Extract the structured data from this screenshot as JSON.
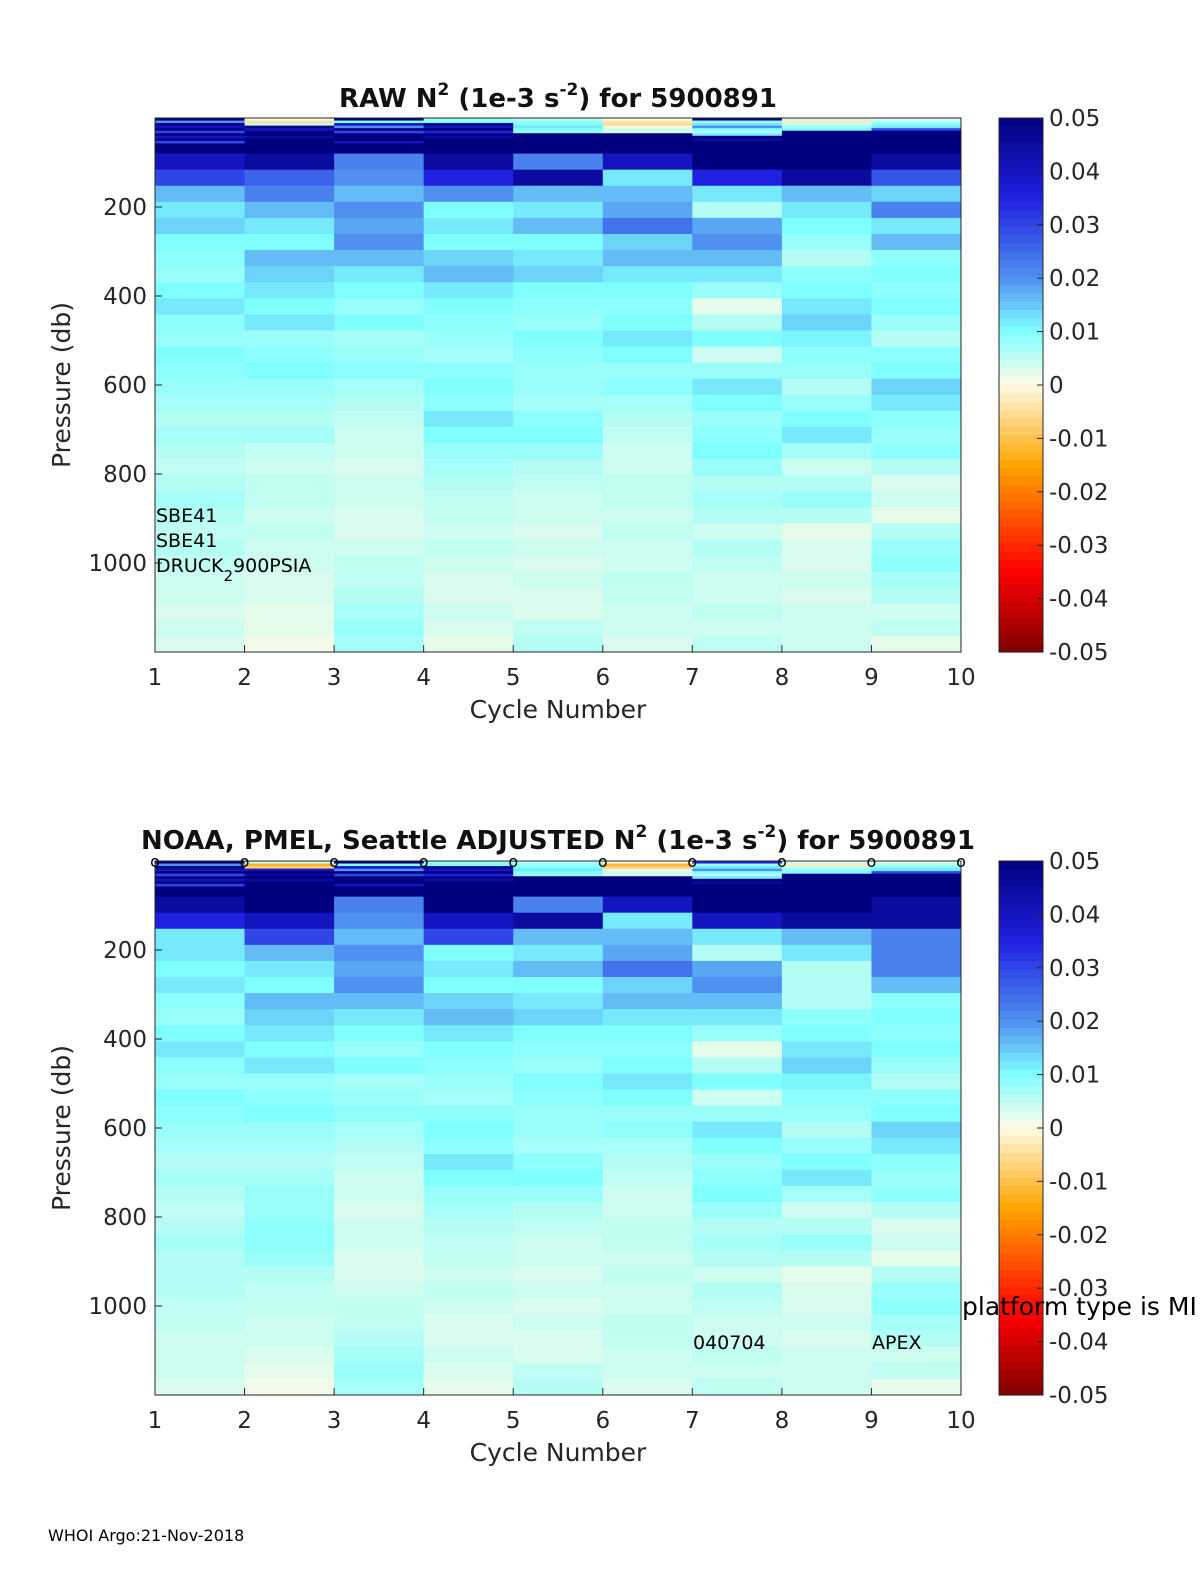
{
  "footer": "WHOI Argo:21-Nov-2018",
  "colors": {
    "stops": [
      {
        "v": -0.05,
        "c": "#800000"
      },
      {
        "v": -0.035,
        "c": "#ff0000"
      },
      {
        "v": -0.015,
        "c": "#ffa500"
      },
      {
        "v": 0.0,
        "c": "#fffbe6"
      },
      {
        "v": 0.01,
        "c": "#80ffff"
      },
      {
        "v": 0.02,
        "c": "#4f90f0"
      },
      {
        "v": 0.035,
        "c": "#2020e0"
      },
      {
        "v": 0.05,
        "c": "#00007f"
      }
    ]
  },
  "colorbar": {
    "ticks": [
      "0.05",
      "0.04",
      "0.03",
      "0.02",
      "0.01",
      "0",
      "-0.01",
      "-0.02",
      "-0.03",
      "-0.04",
      "-0.05"
    ],
    "range": [
      -0.05,
      0.05
    ]
  },
  "chart_data": [
    {
      "type": "heatmap",
      "title": "RAW N",
      "title_sup1": "2",
      "title_mid": " (1e-3 s",
      "title_sup2": "-2",
      "title_end": ") for 5900891",
      "xlabel": "Cycle Number",
      "ylabel": "Pressure (db)",
      "x_ticks": [
        "1",
        "2",
        "3",
        "4",
        "5",
        "6",
        "7",
        "8",
        "9",
        "10"
      ],
      "y_ticks": [
        "200",
        "400",
        "600",
        "800",
        "1000"
      ],
      "xlim": [
        1,
        10
      ],
      "ylim": [
        0,
        1200
      ],
      "clim": [
        -0.05,
        0.05
      ],
      "annotations": [
        "SBE41",
        "SBE41",
        "DRUCK",
        "2",
        "900PSIA"
      ],
      "cycles": [
        1,
        2,
        3,
        4,
        5,
        6,
        7,
        8,
        9
      ],
      "shallow": [
        [
          0.05,
          0.02,
          0.05,
          0.04,
          0.05,
          0.03,
          0.05,
          0.04,
          0.05,
          0.03,
          0.05,
          0.05,
          0.05,
          0.05
        ],
        [
          0.0,
          -0.005,
          0.005,
          0.05,
          0.04,
          0.05,
          0.05,
          0.045,
          0.05,
          0.05,
          0.05,
          0.05,
          0.05,
          0.05
        ],
        [
          0.05,
          0.01,
          0.04,
          0.02,
          0.05,
          0.03,
          0.05,
          0.05,
          0.05,
          0.04,
          0.05,
          0.05,
          0.05,
          0.05
        ],
        [
          0.008,
          0.01,
          0.05,
          0.04,
          0.05,
          0.035,
          0.05,
          0.045,
          0.05,
          0.05,
          0.05,
          0.05,
          0.05,
          0.05
        ],
        [
          0.006,
          0.008,
          0.01,
          0.012,
          0.01,
          0.008,
          0.05,
          0.05,
          0.05,
          0.05,
          0.05,
          0.05,
          0.05,
          0.05
        ],
        [
          0.0,
          -0.004,
          -0.006,
          0.002,
          0.004,
          0.003,
          0.05,
          0.05,
          0.05,
          0.05,
          0.05,
          0.05,
          0.05,
          0.05
        ],
        [
          0.05,
          0.008,
          0.012,
          0.02,
          0.01,
          0.006,
          0.012,
          0.05,
          0.045,
          0.05,
          0.05,
          0.05,
          0.05,
          0.05
        ],
        [
          0.004,
          -0.003,
          0.005,
          0.008,
          0.01,
          0.05,
          0.05,
          0.05,
          0.05,
          0.05,
          0.05,
          0.05,
          0.05,
          0.05
        ],
        [
          0.003,
          0.006,
          0.01,
          0.012,
          0.03,
          0.05,
          0.05,
          0.05,
          0.05,
          0.05,
          0.05,
          0.05,
          0.05,
          0.05
        ]
      ],
      "deep": [
        [
          0.04,
          0.03,
          0.016,
          0.012,
          0.014,
          0.01,
          0.009,
          0.008,
          0.01,
          0.012,
          0.009,
          0.008,
          0.01,
          0.009,
          0.008,
          0.007,
          0.006,
          0.007,
          0.006,
          0.005,
          0.006,
          0.007,
          0.006,
          0.005,
          0.006,
          0.005,
          0.004,
          0.004,
          0.003,
          0.004,
          0.003
        ],
        [
          0.045,
          0.026,
          0.022,
          0.016,
          0.012,
          0.01,
          0.016,
          0.014,
          0.012,
          0.01,
          0.012,
          0.008,
          0.009,
          0.01,
          0.008,
          0.007,
          0.006,
          0.007,
          0.005,
          0.004,
          0.005,
          0.005,
          0.004,
          0.005,
          0.004,
          0.004,
          0.003,
          0.003,
          0.002,
          0.002,
          0.001
        ],
        [
          0.022,
          0.02,
          0.016,
          0.02,
          0.018,
          0.02,
          0.016,
          0.012,
          0.01,
          0.008,
          0.01,
          0.007,
          0.008,
          0.009,
          0.007,
          0.006,
          0.005,
          0.004,
          0.004,
          0.003,
          0.004,
          0.004,
          0.003,
          0.003,
          0.004,
          0.005,
          0.005,
          0.006,
          0.007,
          0.008,
          0.007
        ],
        [
          0.045,
          0.035,
          0.02,
          0.01,
          0.012,
          0.01,
          0.014,
          0.016,
          0.012,
          0.01,
          0.009,
          0.008,
          0.007,
          0.009,
          0.01,
          0.009,
          0.012,
          0.01,
          0.008,
          0.007,
          0.006,
          0.005,
          0.005,
          0.004,
          0.005,
          0.004,
          0.003,
          0.003,
          0.004,
          0.003,
          0.002
        ],
        [
          0.022,
          0.045,
          0.016,
          0.012,
          0.016,
          0.01,
          0.012,
          0.014,
          0.01,
          0.009,
          0.008,
          0.01,
          0.009,
          0.008,
          0.008,
          0.007,
          0.009,
          0.01,
          0.008,
          0.006,
          0.005,
          0.004,
          0.004,
          0.003,
          0.004,
          0.003,
          0.004,
          0.003,
          0.003,
          0.005,
          0.006
        ],
        [
          0.04,
          0.012,
          0.016,
          0.018,
          0.024,
          0.014,
          0.016,
          0.012,
          0.01,
          0.009,
          0.01,
          0.012,
          0.01,
          0.008,
          0.009,
          0.007,
          0.006,
          0.005,
          0.004,
          0.004,
          0.005,
          0.005,
          0.004,
          0.005,
          0.004,
          0.004,
          0.005,
          0.005,
          0.004,
          0.004,
          0.003
        ],
        [
          0.05,
          0.035,
          0.012,
          0.006,
          0.018,
          0.02,
          0.016,
          0.012,
          0.008,
          0.002,
          0.006,
          0.01,
          0.004,
          0.008,
          0.012,
          0.01,
          0.008,
          0.009,
          0.01,
          0.008,
          0.006,
          0.007,
          0.006,
          0.004,
          0.006,
          0.005,
          0.004,
          0.004,
          0.005,
          0.004,
          0.005
        ],
        [
          0.05,
          0.045,
          0.016,
          0.012,
          0.01,
          0.008,
          0.006,
          0.009,
          0.01,
          0.012,
          0.014,
          0.011,
          0.009,
          0.008,
          0.006,
          0.008,
          0.01,
          0.012,
          0.007,
          0.004,
          0.006,
          0.008,
          0.006,
          0.002,
          0.003,
          0.003,
          0.004,
          0.003,
          0.004,
          0.004,
          0.004
        ],
        [
          0.045,
          0.028,
          0.014,
          0.022,
          0.012,
          0.016,
          0.009,
          0.01,
          0.009,
          0.01,
          0.008,
          0.006,
          0.009,
          0.01,
          0.014,
          0.012,
          0.009,
          0.008,
          0.009,
          0.006,
          0.003,
          0.004,
          0.002,
          0.006,
          0.008,
          0.009,
          0.007,
          0.006,
          0.004,
          0.005,
          0.002
        ]
      ]
    },
    {
      "type": "heatmap",
      "title": "NOAA, PMEL, Seattle  ADJUSTED N",
      "title_sup1": "2",
      "title_mid": " (1e-3 s",
      "title_sup2": "-2",
      "title_end": ") for 5900891",
      "xlabel": "Cycle Number",
      "ylabel": "Pressure (db)",
      "x_ticks": [
        "1",
        "2",
        "3",
        "4",
        "5",
        "6",
        "7",
        "8",
        "9",
        "10"
      ],
      "y_ticks": [
        "200",
        "400",
        "600",
        "800",
        "1000"
      ],
      "xlim": [
        1,
        10
      ],
      "ylim": [
        0,
        1200
      ],
      "clim": [
        -0.05,
        0.05
      ],
      "markers": [
        "o",
        "o",
        "o",
        "o",
        "o",
        "o",
        "o",
        "o",
        "o",
        "o"
      ],
      "annotations": [
        "platform type is MI",
        "040704",
        "APEX"
      ],
      "cycles": [
        1,
        2,
        3,
        4,
        5,
        6,
        7,
        8,
        9
      ],
      "shallow": [
        [
          0.05,
          0.02,
          0.05,
          0.04,
          0.05,
          0.03,
          0.05,
          0.04,
          0.05,
          0.03,
          0.05,
          0.05,
          0.05,
          0.05
        ],
        [
          0.005,
          -0.012,
          -0.008,
          0.04,
          0.05,
          0.045,
          0.05,
          0.045,
          0.05,
          0.05,
          0.05,
          0.05,
          0.05,
          0.05
        ],
        [
          0.05,
          0.01,
          0.04,
          0.02,
          0.05,
          0.03,
          0.05,
          0.05,
          0.05,
          0.04,
          0.05,
          0.05,
          0.05,
          0.05
        ],
        [
          0.008,
          0.01,
          0.05,
          0.04,
          0.05,
          0.035,
          0.05,
          0.045,
          0.05,
          0.05,
          0.05,
          0.05,
          0.05,
          0.05
        ],
        [
          0.006,
          0.008,
          0.01,
          0.012,
          0.01,
          0.008,
          0.05,
          0.05,
          0.05,
          0.05,
          0.05,
          0.05,
          0.05,
          0.05
        ],
        [
          0.0,
          -0.012,
          -0.008,
          0.002,
          0.004,
          0.003,
          0.05,
          0.05,
          0.05,
          0.05,
          0.05,
          0.05,
          0.05,
          0.05
        ],
        [
          0.035,
          0.008,
          0.012,
          0.02,
          0.01,
          0.006,
          0.012,
          0.05,
          0.045,
          0.05,
          0.05,
          0.05,
          0.05,
          0.05
        ],
        [
          0.004,
          -0.003,
          0.005,
          0.008,
          0.01,
          0.05,
          0.05,
          0.05,
          0.05,
          0.05,
          0.05,
          0.05,
          0.05,
          0.05
        ],
        [
          0.003,
          0.006,
          0.01,
          0.012,
          0.03,
          0.05,
          0.05,
          0.05,
          0.05,
          0.05,
          0.05,
          0.05,
          0.05,
          0.05
        ]
      ],
      "deep": [
        [
          0.045,
          0.035,
          0.012,
          0.012,
          0.01,
          0.012,
          0.009,
          0.008,
          0.01,
          0.012,
          0.009,
          0.008,
          0.01,
          0.009,
          0.008,
          0.007,
          0.006,
          0.007,
          0.006,
          0.005,
          0.006,
          0.007,
          0.006,
          0.006,
          0.006,
          0.005,
          0.005,
          0.004,
          0.004,
          0.004,
          0.003
        ],
        [
          0.05,
          0.04,
          0.03,
          0.016,
          0.012,
          0.01,
          0.016,
          0.014,
          0.012,
          0.01,
          0.012,
          0.008,
          0.009,
          0.01,
          0.008,
          0.007,
          0.006,
          0.007,
          0.008,
          0.008,
          0.009,
          0.009,
          0.008,
          0.006,
          0.005,
          0.005,
          0.004,
          0.004,
          0.003,
          0.002,
          0.001
        ],
        [
          0.022,
          0.02,
          0.016,
          0.02,
          0.018,
          0.02,
          0.016,
          0.012,
          0.01,
          0.008,
          0.01,
          0.007,
          0.008,
          0.009,
          0.007,
          0.006,
          0.005,
          0.004,
          0.004,
          0.003,
          0.004,
          0.004,
          0.003,
          0.003,
          0.004,
          0.005,
          0.005,
          0.006,
          0.007,
          0.008,
          0.007
        ],
        [
          0.05,
          0.04,
          0.03,
          0.01,
          0.012,
          0.01,
          0.014,
          0.016,
          0.012,
          0.01,
          0.009,
          0.008,
          0.007,
          0.009,
          0.01,
          0.009,
          0.012,
          0.01,
          0.008,
          0.007,
          0.006,
          0.005,
          0.005,
          0.004,
          0.005,
          0.004,
          0.003,
          0.003,
          0.004,
          0.003,
          0.002
        ],
        [
          0.022,
          0.045,
          0.016,
          0.012,
          0.016,
          0.01,
          0.012,
          0.014,
          0.01,
          0.009,
          0.008,
          0.01,
          0.009,
          0.008,
          0.008,
          0.007,
          0.009,
          0.01,
          0.008,
          0.006,
          0.005,
          0.004,
          0.004,
          0.003,
          0.004,
          0.003,
          0.004,
          0.003,
          0.003,
          0.005,
          0.006
        ],
        [
          0.04,
          0.012,
          0.016,
          0.018,
          0.024,
          0.014,
          0.016,
          0.012,
          0.01,
          0.009,
          0.01,
          0.012,
          0.01,
          0.008,
          0.009,
          0.007,
          0.006,
          0.005,
          0.004,
          0.004,
          0.005,
          0.005,
          0.004,
          0.005,
          0.004,
          0.004,
          0.005,
          0.005,
          0.004,
          0.004,
          0.003
        ],
        [
          0.05,
          0.04,
          0.012,
          0.006,
          0.018,
          0.02,
          0.016,
          0.012,
          0.008,
          0.002,
          0.006,
          0.01,
          0.004,
          0.008,
          0.012,
          0.01,
          0.008,
          0.009,
          0.01,
          0.008,
          0.006,
          0.007,
          0.006,
          0.004,
          0.006,
          0.005,
          0.004,
          0.004,
          0.005,
          0.004,
          0.005
        ],
        [
          0.05,
          0.045,
          0.016,
          0.012,
          0.006,
          0.006,
          0.006,
          0.009,
          0.01,
          0.012,
          0.014,
          0.011,
          0.009,
          0.008,
          0.006,
          0.008,
          0.01,
          0.012,
          0.007,
          0.004,
          0.006,
          0.008,
          0.006,
          0.002,
          0.003,
          0.003,
          0.004,
          0.003,
          0.004,
          0.004,
          0.004
        ],
        [
          0.045,
          0.045,
          0.022,
          0.022,
          0.022,
          0.016,
          0.009,
          0.01,
          0.009,
          0.01,
          0.008,
          0.006,
          0.009,
          0.01,
          0.014,
          0.012,
          0.009,
          0.008,
          0.009,
          0.006,
          0.003,
          0.004,
          0.002,
          0.006,
          0.008,
          0.009,
          0.007,
          0.006,
          0.004,
          0.005,
          0.002
        ]
      ]
    }
  ]
}
